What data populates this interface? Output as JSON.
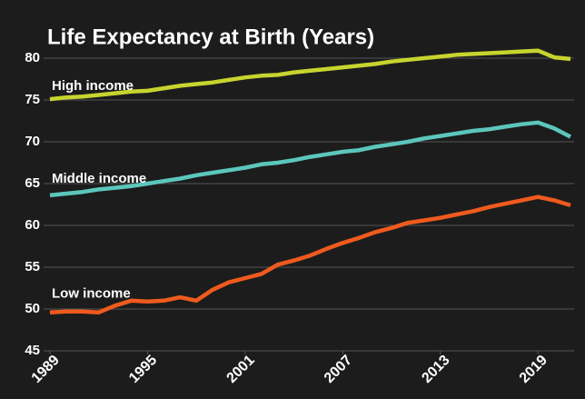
{
  "chart_data": {
    "type": "line",
    "title": "Life Expectancy at Birth (Years)",
    "x": [
      1989,
      1990,
      1991,
      1992,
      1993,
      1994,
      1995,
      1996,
      1997,
      1998,
      1999,
      2000,
      2001,
      2002,
      2003,
      2004,
      2005,
      2006,
      2007,
      2008,
      2009,
      2010,
      2011,
      2012,
      2013,
      2014,
      2015,
      2016,
      2017,
      2018,
      2019,
      2020,
      2021
    ],
    "xlim": [
      1989,
      2021
    ],
    "xticks": [
      1989,
      1995,
      2001,
      2007,
      2013,
      2019
    ],
    "ylim": [
      45,
      80
    ],
    "yticks": [
      45,
      50,
      55,
      60,
      65,
      70,
      75,
      80
    ],
    "grid": true,
    "series": [
      {
        "name": "High income",
        "color": "#c8d42e",
        "values": [
          75.1,
          75.3,
          75.4,
          75.6,
          75.8,
          76.0,
          76.1,
          76.4,
          76.7,
          76.9,
          77.1,
          77.4,
          77.7,
          77.9,
          78.0,
          78.3,
          78.5,
          78.7,
          78.9,
          79.1,
          79.3,
          79.6,
          79.8,
          80.0,
          80.2,
          80.4,
          80.5,
          80.6,
          80.7,
          80.8,
          80.9,
          80.1,
          79.9
        ]
      },
      {
        "name": "Middle income",
        "color": "#5cc6bc",
        "values": [
          63.6,
          63.8,
          64.0,
          64.3,
          64.5,
          64.7,
          65.0,
          65.3,
          65.6,
          66.0,
          66.3,
          66.6,
          66.9,
          67.3,
          67.5,
          67.8,
          68.2,
          68.5,
          68.8,
          69.0,
          69.4,
          69.7,
          70.0,
          70.4,
          70.7,
          71.0,
          71.3,
          71.5,
          71.8,
          72.1,
          72.3,
          71.6,
          70.6
        ]
      },
      {
        "name": "Low income",
        "color": "#f05a1e",
        "values": [
          49.6,
          49.7,
          49.7,
          49.6,
          50.4,
          51.0,
          50.9,
          51.0,
          51.4,
          51.0,
          52.3,
          53.2,
          53.7,
          54.2,
          55.3,
          55.8,
          56.4,
          57.2,
          57.9,
          58.5,
          59.2,
          59.7,
          60.3,
          60.6,
          60.9,
          61.3,
          61.7,
          62.2,
          62.6,
          63.0,
          63.4,
          63.0,
          62.4
        ]
      }
    ]
  }
}
